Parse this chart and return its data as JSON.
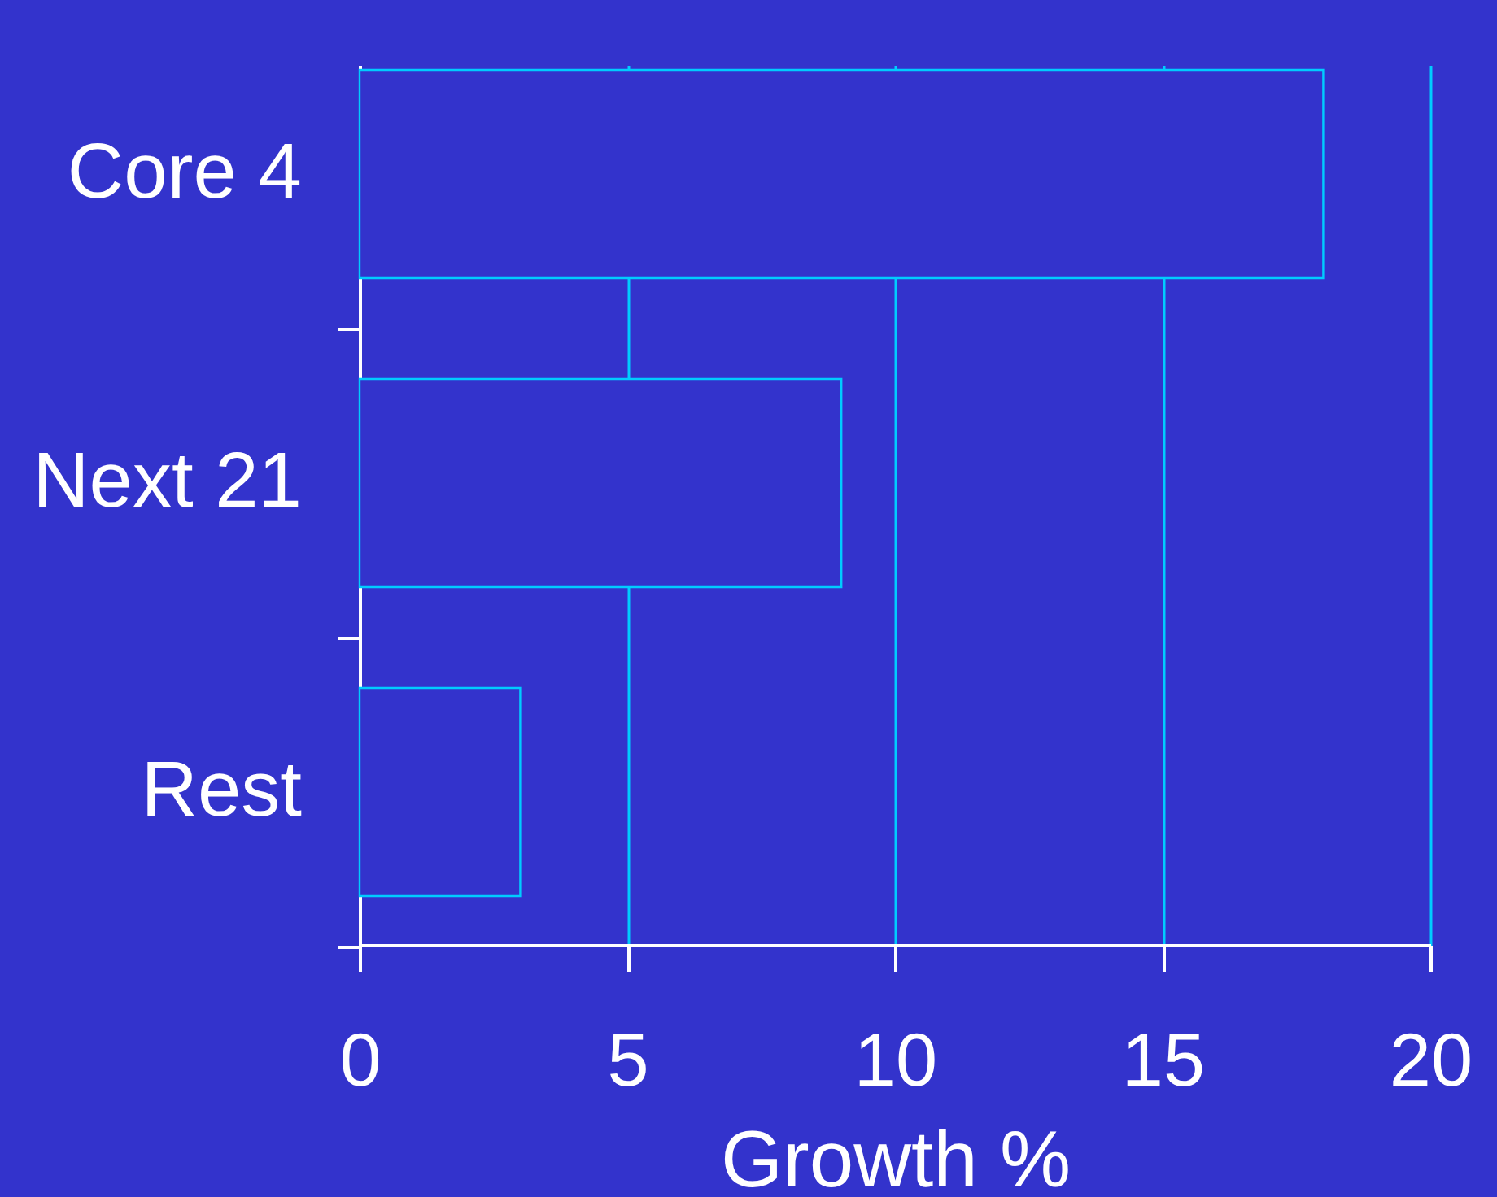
{
  "chart_data": {
    "type": "bar",
    "orientation": "horizontal",
    "categories": [
      "Core 4",
      "Next 21",
      "Rest"
    ],
    "values": [
      18,
      9,
      3
    ],
    "color": "#3333cc",
    "xlabel": "Growth %",
    "xlim": [
      0,
      20
    ],
    "xticks": [
      0,
      5,
      10,
      15,
      20
    ],
    "grid": "x"
  }
}
